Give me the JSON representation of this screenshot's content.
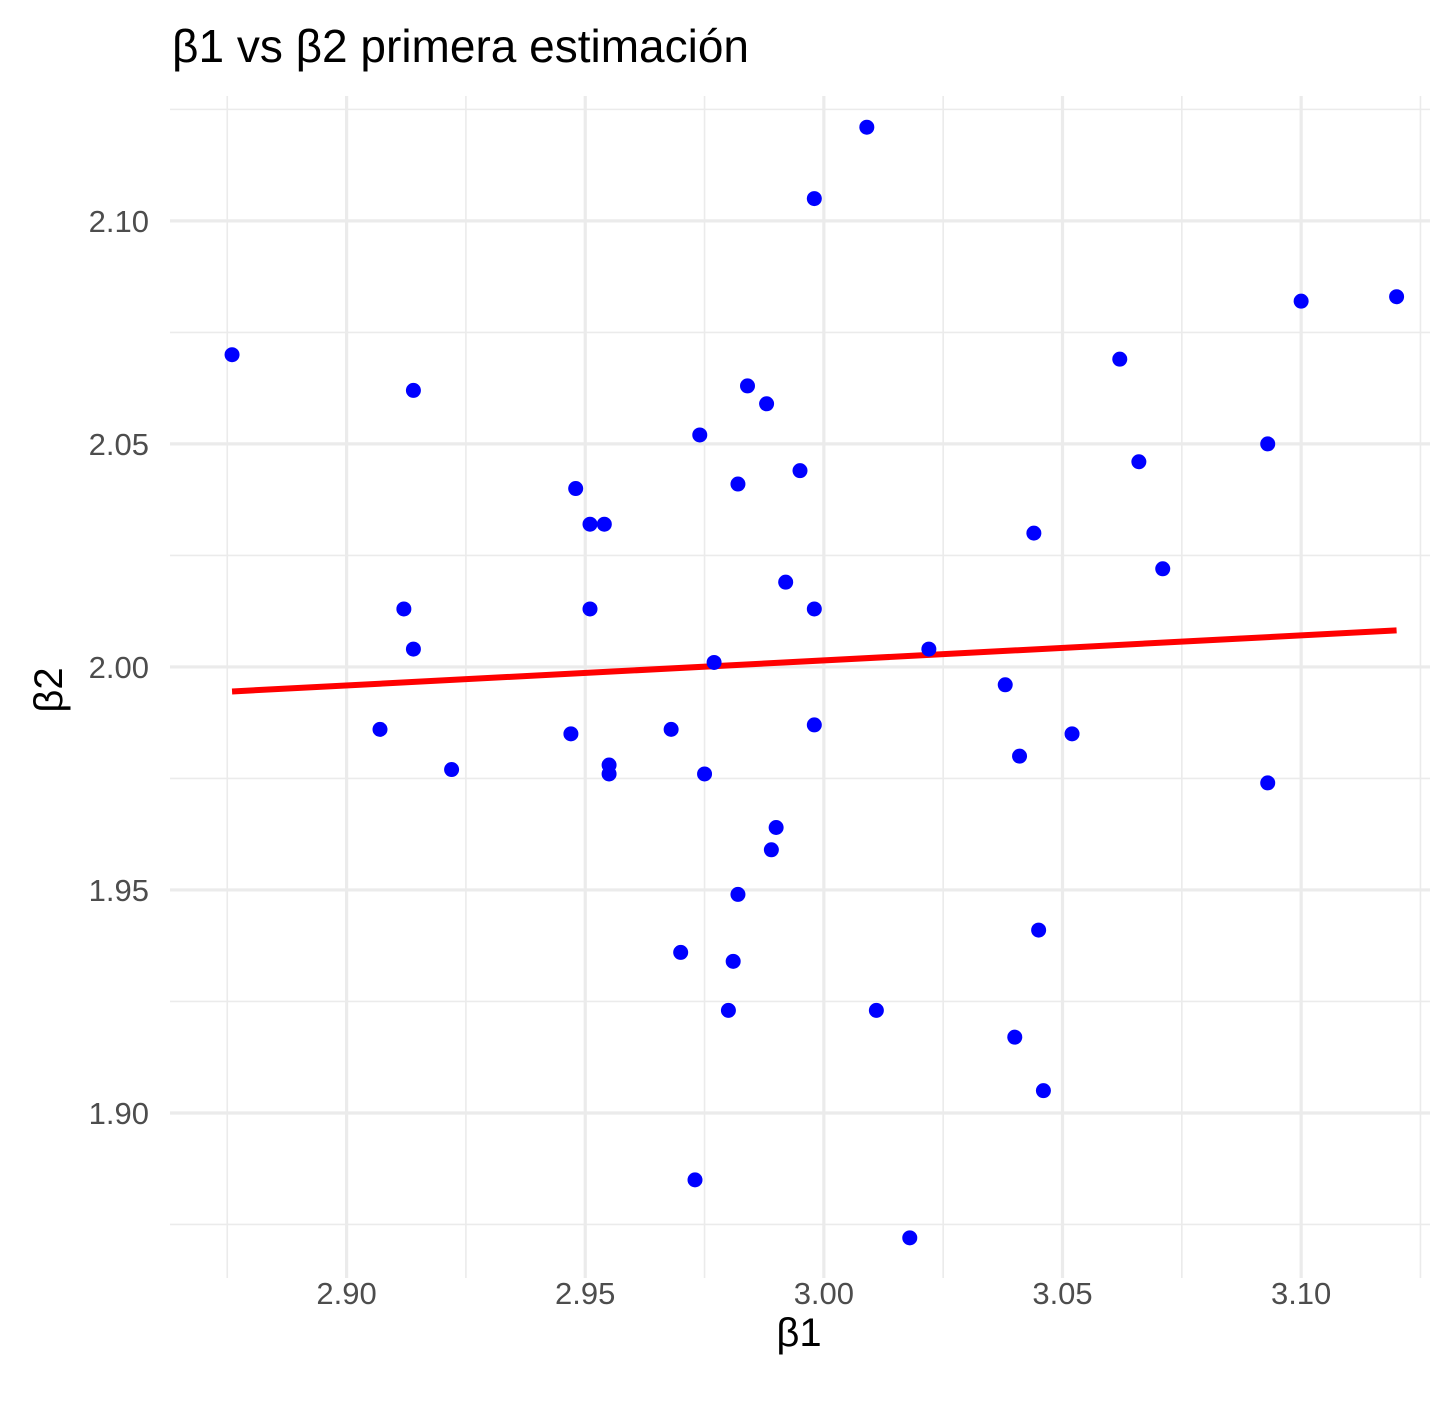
{
  "chart_data": {
    "type": "scatter",
    "title": "β1 vs β2 primera estimación",
    "xlabel": "β1",
    "ylabel": "β2",
    "xlim": [
      2.863,
      3.127
    ],
    "ylim": [
      1.863,
      2.128
    ],
    "x_ticks": [
      2.9,
      2.95,
      3.0,
      3.05,
      3.1
    ],
    "x_tick_labels": [
      "2.90",
      "2.95",
      "3.00",
      "3.05",
      "3.10"
    ],
    "y_ticks": [
      1.9,
      1.95,
      2.0,
      2.05,
      2.1
    ],
    "y_tick_labels": [
      "1.90",
      "1.95",
      "2.00",
      "2.05",
      "2.10"
    ],
    "grid": true,
    "legend": "none",
    "point_color": "#0000ff",
    "line_color": "#ff0000",
    "points": [
      [
        2.876,
        2.07
      ],
      [
        2.914,
        2.062
      ],
      [
        2.912,
        2.013
      ],
      [
        2.914,
        2.004
      ],
      [
        2.907,
        1.986
      ],
      [
        2.922,
        1.977
      ],
      [
        2.947,
        1.985
      ],
      [
        2.948,
        2.04
      ],
      [
        2.951,
        2.032
      ],
      [
        2.954,
        2.032
      ],
      [
        2.951,
        2.013
      ],
      [
        2.955,
        1.978
      ],
      [
        2.955,
        1.976
      ],
      [
        2.968,
        1.986
      ],
      [
        2.97,
        1.936
      ],
      [
        2.973,
        1.885
      ],
      [
        2.974,
        2.052
      ],
      [
        2.975,
        1.976
      ],
      [
        2.977,
        2.001
      ],
      [
        2.98,
        1.923
      ],
      [
        2.981,
        1.934
      ],
      [
        2.982,
        2.041
      ],
      [
        2.982,
        1.949
      ],
      [
        2.984,
        2.063
      ],
      [
        2.988,
        2.059
      ],
      [
        2.989,
        1.959
      ],
      [
        2.99,
        1.964
      ],
      [
        2.992,
        2.019
      ],
      [
        2.995,
        2.044
      ],
      [
        2.998,
        2.013
      ],
      [
        2.998,
        1.987
      ],
      [
        2.998,
        2.105
      ],
      [
        3.009,
        2.121
      ],
      [
        3.011,
        1.923
      ],
      [
        3.018,
        1.872
      ],
      [
        3.022,
        2.004
      ],
      [
        3.038,
        1.996
      ],
      [
        3.04,
        1.917
      ],
      [
        3.041,
        1.98
      ],
      [
        3.044,
        2.03
      ],
      [
        3.045,
        1.941
      ],
      [
        3.046,
        1.905
      ],
      [
        3.052,
        1.985
      ],
      [
        3.062,
        2.069
      ],
      [
        3.066,
        2.046
      ],
      [
        3.071,
        2.022
      ],
      [
        3.093,
        2.05
      ],
      [
        3.093,
        1.974
      ],
      [
        3.1,
        2.082
      ],
      [
        3.12,
        2.083
      ]
    ],
    "fit_line": {
      "x": [
        2.876,
        3.12
      ],
      "y": [
        1.9945,
        2.0082
      ]
    }
  }
}
